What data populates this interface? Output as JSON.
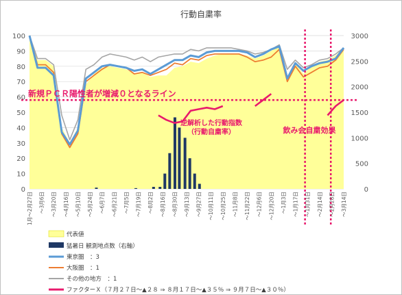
{
  "chart_data": {
    "type": "line",
    "title": "行動自粛率",
    "ylim": [
      0,
      100
    ],
    "y2lim": [
      0,
      3000
    ],
    "y_ticks": [
      "0",
      "10",
      "20",
      "30",
      "40",
      "50",
      "60",
      "70",
      "80",
      "90",
      "100"
    ],
    "y2_ticks": [
      "0",
      "500",
      "1000",
      "1500",
      "2000",
      "2500",
      "3000"
    ],
    "x_ticks": [
      "1月～2月27日",
      "～3月6日",
      "～3月20日",
      "～4月16日",
      "～5月10日",
      "～5月24日",
      "～6月7日",
      "～6月21日",
      "～7月5日",
      "～7月19日",
      "～8月2日",
      "～8月16日",
      "～8月30日",
      "～9月13日",
      "～9月27日",
      "～10月11日",
      "～10月25日",
      "～11月8日",
      "～11月22日",
      "～12月6日",
      "～12月20日",
      "～1月3日",
      "～1月17日",
      "～1月31日",
      "～2月14日",
      "～2月28日",
      "～3月14日"
    ],
    "series": [
      {
        "name": "代表値",
        "type": "area",
        "color": "#ffff99",
        "values": [
          100,
          84,
          84,
          80,
          40,
          30,
          40,
          68,
          75,
          79,
          80,
          79,
          78,
          75,
          76,
          73,
          74,
          74,
          79,
          80,
          83,
          82,
          85,
          87,
          88,
          88,
          88,
          87,
          85,
          87,
          90,
          93,
          70,
          82,
          75,
          80,
          83,
          84,
          87,
          92
        ]
      },
      {
        "name": "東京圏　：3",
        "color": "#5b9bd5",
        "values": [
          100,
          79,
          79,
          74,
          37,
          29,
          38,
          72,
          76,
          80,
          81,
          80,
          79,
          77,
          78,
          75,
          78,
          81,
          84,
          84,
          87,
          86,
          89,
          90,
          90,
          90,
          90,
          89,
          86,
          88,
          91,
          93,
          72,
          82,
          77,
          80,
          82,
          83,
          85,
          92
        ]
      },
      {
        "name": "大阪圏　：1",
        "color": "#ed7d31",
        "values": [
          100,
          81,
          81,
          76,
          36,
          27,
          36,
          70,
          74,
          78,
          81,
          80,
          79,
          75,
          76,
          74,
          76,
          78,
          82,
          81,
          85,
          84,
          87,
          88,
          88,
          88,
          88,
          86,
          83,
          84,
          86,
          91,
          70,
          80,
          73,
          76,
          79,
          80,
          84,
          91
        ]
      },
      {
        "name": "その他の地方　：1",
        "color": "#a5a5a5",
        "values": [
          100,
          85,
          85,
          81,
          48,
          32,
          45,
          78,
          81,
          86,
          88,
          87,
          86,
          84,
          86,
          83,
          86,
          87,
          88,
          88,
          91,
          90,
          92,
          92,
          92,
          92,
          91,
          90,
          88,
          89,
          91,
          94,
          78,
          84,
          79,
          81,
          84,
          85,
          88,
          92
        ]
      },
      {
        "name": "ファクターＸ（７月２７日～▲２８ ⇒ ８月１７日～▲３５％ ⇒ ９月７日～▲３０％）",
        "color": "#e8196c",
        "values": [
          null,
          null,
          null,
          null,
          null,
          null,
          null,
          null,
          null,
          null,
          null,
          null,
          null,
          null,
          null,
          null,
          48,
          45,
          43,
          44,
          51,
          52,
          53,
          52,
          54,
          null,
          null,
          null,
          54,
          58,
          62,
          null,
          null,
          null,
          null,
          null,
          null,
          48,
          54,
          58
        ]
      }
    ],
    "bars": {
      "name": "猛暑日 観測地点数（右軸）",
      "color": "#1f3864",
      "points": [
        [
          8.3,
          25
        ],
        [
          13.2,
          15
        ],
        [
          15.4,
          40
        ],
        [
          16.2,
          40
        ],
        [
          16.8,
          300
        ],
        [
          17.4,
          700
        ],
        [
          18.05,
          1400
        ],
        [
          18.6,
          1200
        ],
        [
          19.3,
          1000
        ],
        [
          19.9,
          600
        ],
        [
          20.5,
          300
        ],
        [
          21.1,
          100
        ]
      ]
    },
    "hline": {
      "label": "新規ＰＣＲ陽性者が増減０となるライン",
      "value": 58,
      "color": "#e8196c"
    },
    "vlines": [
      {
        "at": 34.2
      },
      {
        "at": 37.4
      }
    ],
    "annotations": {
      "reverse_analysis": [
        "逆解析した行動指数",
        "（行動自粛率）"
      ],
      "drinking": "飲み会自粛効果"
    }
  }
}
